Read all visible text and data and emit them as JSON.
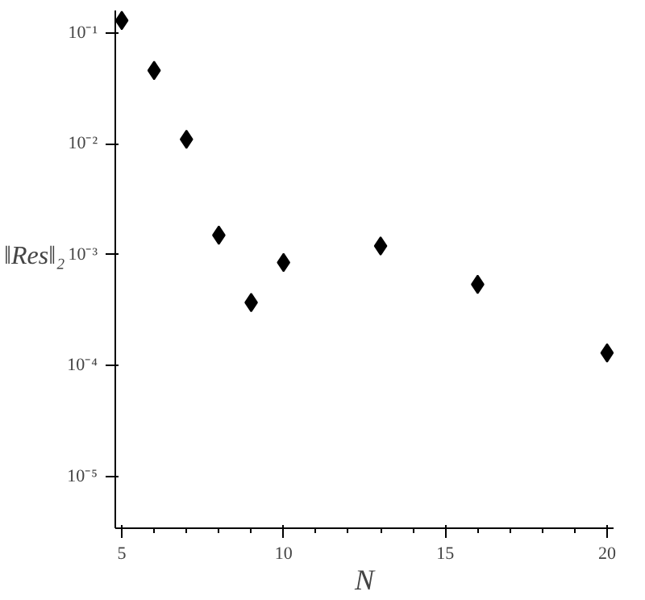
{
  "chart_data": {
    "type": "scatter",
    "xlabel": "N",
    "ylabel": "‖Res‖₂",
    "log": "y",
    "marker": "diamond",
    "grid": false,
    "x": [
      5,
      6,
      7,
      8,
      9,
      10,
      13,
      16,
      20
    ],
    "series": [
      {
        "color": "#000000",
        "values": [
          0.13,
          0.046,
          0.011,
          0.0015,
          0.00037,
          0.00085,
          0.0012,
          0.00054,
          0.00013
        ]
      }
    ],
    "xlim": [
      4.8,
      20.2
    ],
    "xticks": [
      5,
      10,
      15,
      20
    ],
    "ylim": [
      3.4e-06,
      0.16
    ],
    "yticks": [
      {
        "value": 0.1,
        "label": "10⁻¹"
      },
      {
        "value": 0.01,
        "label": "10⁻²"
      },
      {
        "value": 0.001,
        "label": "10⁻³"
      },
      {
        "value": 0.0001,
        "label": "10⁻⁴"
      },
      {
        "value": 1e-05,
        "label": "10⁻⁵"
      }
    ]
  }
}
